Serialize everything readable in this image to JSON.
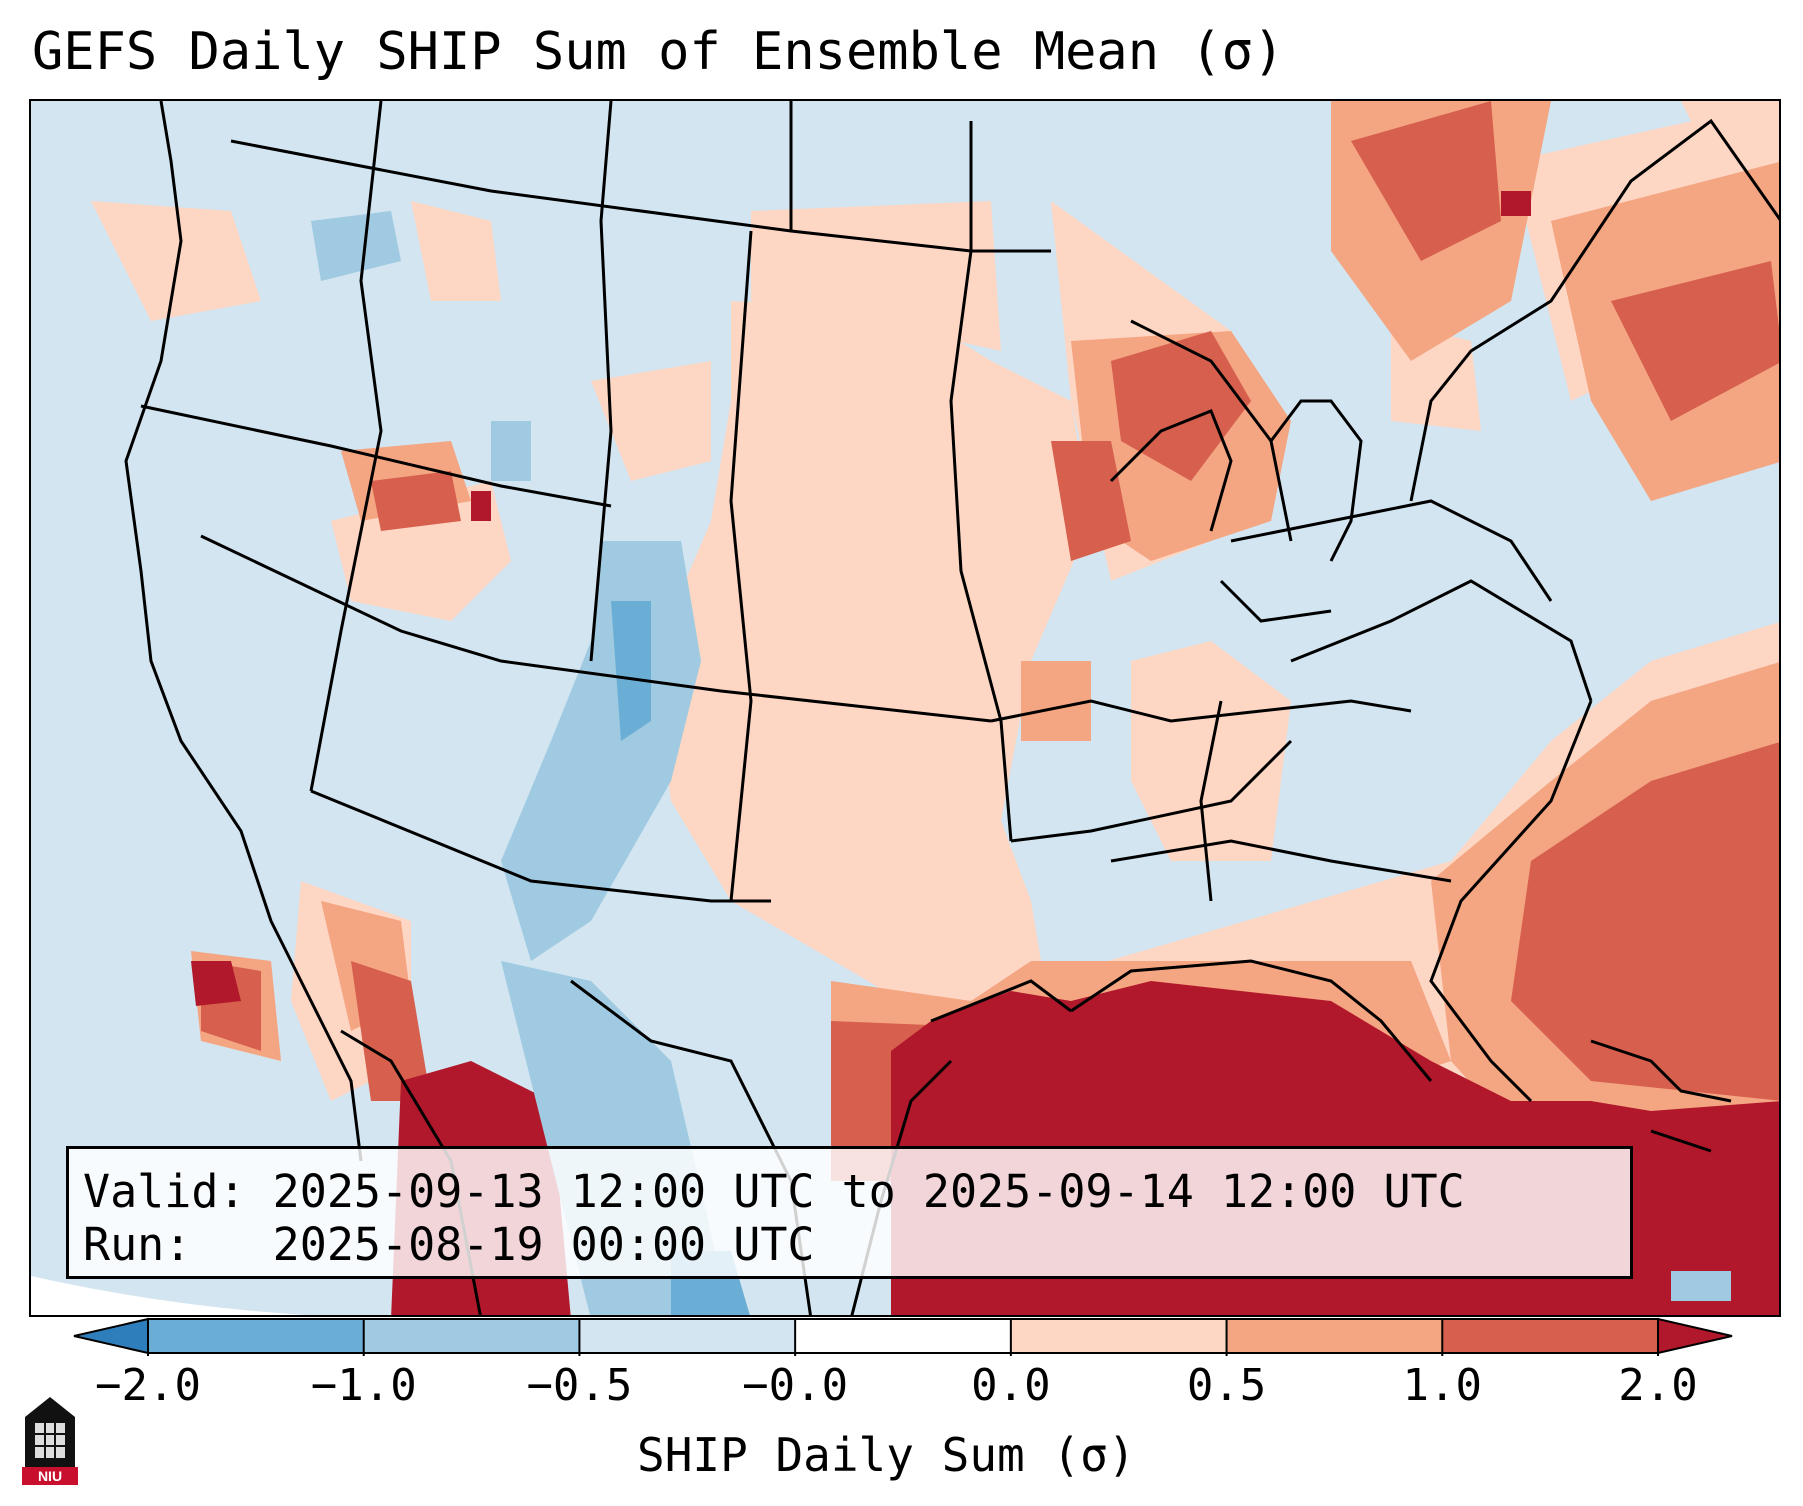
{
  "title": "GEFS Daily SHIP Sum of Ensemble Mean (σ)",
  "info": {
    "valid_label": "Valid:",
    "valid_value": "2025-09-13 12:00 UTC to 2025-09-14 12:00 UTC",
    "run_label": "Run:",
    "run_value": "2025-08-19 00:00 UTC"
  },
  "colorbar": {
    "label": "SHIP Daily Sum (σ)",
    "ticks": [
      "−2.0",
      "−1.0",
      "−0.5",
      "−0.0",
      "0.0",
      "0.5",
      "1.0",
      "2.0"
    ],
    "colors": [
      "#2f7ebc",
      "#6aaed6",
      "#9fcae1",
      "#d2e5f0",
      "#ffffff",
      "#fdd6c4",
      "#f4a582",
      "#d6604d",
      "#b2182b"
    ]
  },
  "logo": {
    "text": "NIU"
  }
}
